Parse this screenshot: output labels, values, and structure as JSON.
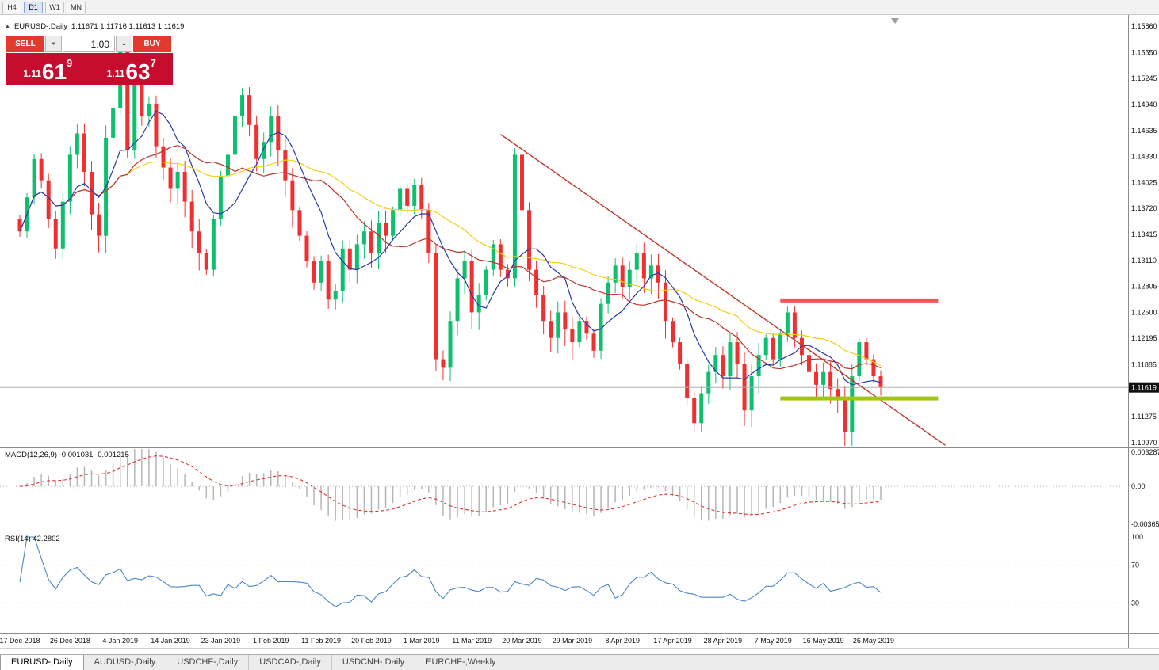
{
  "toolbar": {
    "timeframes": [
      {
        "label": "H4",
        "active": false
      },
      {
        "label": "D1",
        "active": true
      },
      {
        "label": "W1",
        "active": false
      },
      {
        "label": "MN",
        "active": false
      }
    ]
  },
  "chart_header": {
    "symbol": "EURUSD-,Daily",
    "ohlc": "1.11671 1.11716 1.11613 1.11619"
  },
  "trade_panel": {
    "sell_label": "SELL",
    "buy_label": "BUY",
    "volume": "1.00",
    "sell_price": {
      "figure": "1.11",
      "pips": "61",
      "pip_fraction": "9"
    },
    "buy_price": {
      "figure": "1.11",
      "pips": "63",
      "pip_fraction": "7"
    }
  },
  "price_axis": {
    "labels": [
      "1.15860",
      "1.15550",
      "1.15245",
      "1.14940",
      "1.14635",
      "1.14330",
      "1.14025",
      "1.13720",
      "1.13415",
      "1.13110",
      "1.12805",
      "1.12500",
      "1.12195",
      "1.11885",
      "1.11275",
      "1.10970"
    ],
    "current_price": "1.11619"
  },
  "macd_panel": {
    "label": "MACD(12,26,9) -0.001031 -0.001215",
    "axis_labels": [
      "0.003287",
      "0.00",
      "-0.003655"
    ]
  },
  "rsi_panel": {
    "label": "RSI(14) 42.2802",
    "axis_labels": [
      "100",
      "70",
      "30"
    ]
  },
  "date_axis": {
    "tick_step": 7,
    "labels": [
      "17 Dec 2018",
      "26 Dec 2018",
      "4 Jan 2019",
      "14 Jan 2019",
      "23 Jan 2019",
      "1 Feb 2019",
      "11 Feb 2019",
      "20 Feb 2019",
      "1 Mar 2019",
      "11 Mar 2019",
      "20 Mar 2019",
      "29 Mar 2019",
      "8 Apr 2019",
      "17 Apr 2019",
      "28 Apr 2019",
      "7 May 2019",
      "16 May 2019",
      "26 May 2019"
    ]
  },
  "tabs": [
    {
      "label": "EURUSD-,Daily",
      "active": true
    },
    {
      "label": "AUDUSD-,Daily",
      "active": false
    },
    {
      "label": "USDCHF-,Daily",
      "active": false
    },
    {
      "label": "USDCAD-,Daily",
      "active": false
    },
    {
      "label": "USDCNH-,Daily",
      "active": false
    },
    {
      "label": "EURCHF-,Weekly",
      "active": false
    }
  ],
  "chart_data": {
    "type": "candlestick",
    "title": "EURUSD-,Daily",
    "x_range": [
      "17 Dec 2018",
      "26 May 2019"
    ],
    "y_range": [
      1.1097,
      1.1586
    ],
    "closes": [
      1.1345,
      1.1385,
      1.143,
      1.1405,
      1.136,
      1.1325,
      1.138,
      1.1435,
      1.146,
      1.1415,
      1.1365,
      1.134,
      1.1455,
      1.149,
      1.156,
      1.144,
      1.1525,
      1.148,
      1.1495,
      1.1445,
      1.142,
      1.1395,
      1.1415,
      1.138,
      1.1345,
      1.132,
      1.13,
      1.136,
      1.141,
      1.1435,
      1.148,
      1.1505,
      1.147,
      1.143,
      1.145,
      1.148,
      1.144,
      1.1405,
      1.137,
      1.134,
      1.131,
      1.1285,
      1.131,
      1.1265,
      1.1275,
      1.1325,
      1.13,
      1.133,
      1.1345,
      1.132,
      1.1355,
      1.134,
      1.137,
      1.1395,
      1.1375,
      1.14,
      1.137,
      1.132,
      1.1195,
      1.1185,
      1.124,
      1.129,
      1.131,
      1.125,
      1.127,
      1.13,
      1.133,
      1.13,
      1.129,
      1.1435,
      1.137,
      1.13,
      1.127,
      1.124,
      1.122,
      1.125,
      1.123,
      1.1215,
      1.124,
      1.1225,
      1.1205,
      1.126,
      1.1285,
      1.1305,
      1.128,
      1.13,
      1.132,
      1.129,
      1.1305,
      1.1285,
      1.124,
      1.1215,
      1.119,
      1.115,
      1.112,
      1.1155,
      1.118,
      1.12,
      1.1175,
      1.1215,
      1.119,
      1.1135,
      1.1175,
      1.12,
      1.122,
      1.1195,
      1.1225,
      1.125,
      1.122,
      1.12,
      1.118,
      1.1165,
      1.118,
      1.116,
      1.115,
      1.111,
      1.1175,
      1.1215,
      1.1195,
      1.1175,
      1.1162
    ],
    "overlays": [
      {
        "name": "ma-fast",
        "type": "sma",
        "period": 8,
        "color": "#2839a8"
      },
      {
        "name": "ma-mid",
        "type": "sma",
        "period": 16,
        "color": "#b9342a"
      },
      {
        "name": "ma-slow",
        "type": "sma",
        "period": 32,
        "color": "#f2cf16"
      }
    ],
    "annotations": {
      "trendline": {
        "start_index": 67,
        "start_price": 1.1459,
        "end_index": 129,
        "end_price": 1.1094,
        "color": "#c0392b"
      },
      "resistance": {
        "price": 1.1264,
        "start_index": 106,
        "end_index": 128,
        "color": "#f25757"
      },
      "support": {
        "price": 1.1149,
        "start_index": 106,
        "end_index": 128,
        "color": "#a2c617"
      },
      "current_price": 1.11619
    },
    "indicators": {
      "macd": {
        "fast": 12,
        "slow": 26,
        "signal": 9,
        "axis_top": 0.003287,
        "axis_bottom": -0.003655
      },
      "rsi": {
        "period": 14,
        "levels": [
          70,
          30
        ]
      }
    },
    "colors": {
      "up": "#0dbf6f",
      "down": "#f03030",
      "macd_hist": "#b6b6b6",
      "macd_signal": "#e03131",
      "rsi_line": "#4a86c8"
    }
  }
}
